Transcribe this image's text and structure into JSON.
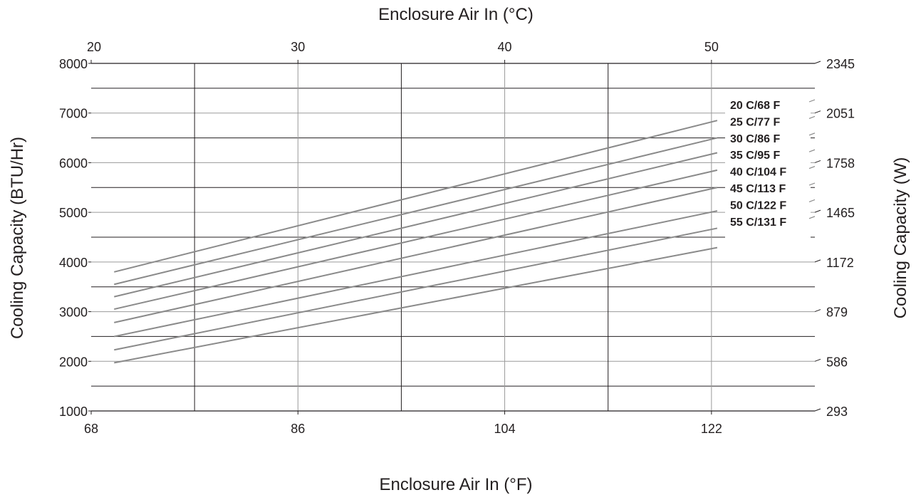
{
  "chart_data": {
    "type": "line",
    "title": "",
    "x_label_bottom": "Enclosure Air In (°F)",
    "x_label_top": "Enclosure Air In (°C)",
    "y_label_left": "Cooling Capacity (BTU/Hr)",
    "y_label_right": "Cooling Capacity (W)",
    "xlim": [
      68,
      131
    ],
    "ylim": [
      1000,
      8000
    ],
    "x_ticks_bottom": [
      "68",
      "86",
      "104",
      "122"
    ],
    "x_ticks_top": [
      "20",
      "30",
      "40",
      "50"
    ],
    "y_ticks_left": [
      "1000",
      "2000",
      "3000",
      "4000",
      "5000",
      "6000",
      "7000",
      "8000"
    ],
    "y_ticks_right": [
      "293",
      "586",
      "879",
      "1172",
      "1465",
      "1758",
      "2051",
      "2345"
    ],
    "grid": true,
    "legend": "inline-right",
    "colors": {
      "series": "#8a8a8a",
      "grid_major": "#231f20",
      "grid_minor": "#9a9a9a"
    },
    "series": [
      {
        "name": "20 C/68 F",
        "x": [
          70,
          122.5
        ],
        "y": [
          3800,
          6850
        ]
      },
      {
        "name": "25 C/77 F",
        "x": [
          70,
          122.5
        ],
        "y": [
          3550,
          6500
        ]
      },
      {
        "name": "30 C/86 F",
        "x": [
          70,
          122.5
        ],
        "y": [
          3300,
          6200
        ]
      },
      {
        "name": "35 C/95 F",
        "x": [
          70,
          122.5
        ],
        "y": [
          3050,
          5850
        ]
      },
      {
        "name": "40 C/104 F",
        "x": [
          70,
          122.5
        ],
        "y": [
          2780,
          5500
        ]
      },
      {
        "name": "45 C/113 F",
        "x": [
          70,
          122.5
        ],
        "y": [
          2500,
          5030
        ]
      },
      {
        "name": "50 C/122 F",
        "x": [
          70,
          122.5
        ],
        "y": [
          2230,
          4680
        ]
      },
      {
        "name": "55 C/131 F",
        "x": [
          70,
          122.5
        ],
        "y": [
          1970,
          4290
        ]
      }
    ]
  }
}
